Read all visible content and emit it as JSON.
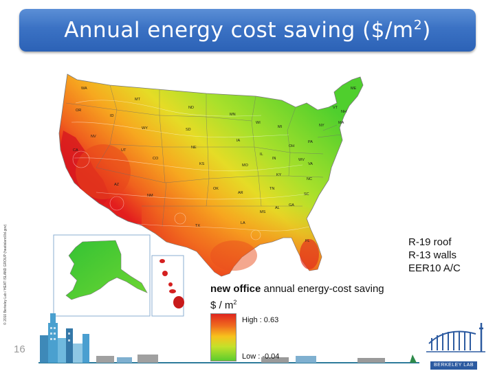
{
  "title": {
    "text": "Annual energy cost saving ($/m",
    "sup": "2",
    "close": ")"
  },
  "specs": [
    "R-19 roof",
    "R-13 walls",
    "EER10 A/C"
  ],
  "legend": {
    "title_bold": "new office",
    "title_rest": " annual energy-cost saving",
    "unit": "$ / m",
    "unit_sup": "2",
    "high": "High : 0.63",
    "low": "Low : -0.04",
    "colors": [
      "#e0261e",
      "#ef6a1e",
      "#f7c21d",
      "#c4e12a",
      "#5ccc2e"
    ]
  },
  "page_number": "16",
  "copyright": "© 2010 Berkeley Lab / HEAT ISLAND GROUP (heatisland.lbl.gov)",
  "logo": "BERKELEY LAB",
  "state_labels": [
    "WA",
    "OR",
    "CA",
    "NV",
    "ID",
    "MT",
    "WY",
    "UT",
    "AZ",
    "CO",
    "NM",
    "ND",
    "SD",
    "NE",
    "KS",
    "OK",
    "TX",
    "MN",
    "IA",
    "MO",
    "AR",
    "LA",
    "WI",
    "IL",
    "MI",
    "IN",
    "OH",
    "KY",
    "TN",
    "MS",
    "AL",
    "GA",
    "FL",
    "SC",
    "NC",
    "VA",
    "WV",
    "PA",
    "NY",
    "ME",
    "VT",
    "NH",
    "MA"
  ]
}
